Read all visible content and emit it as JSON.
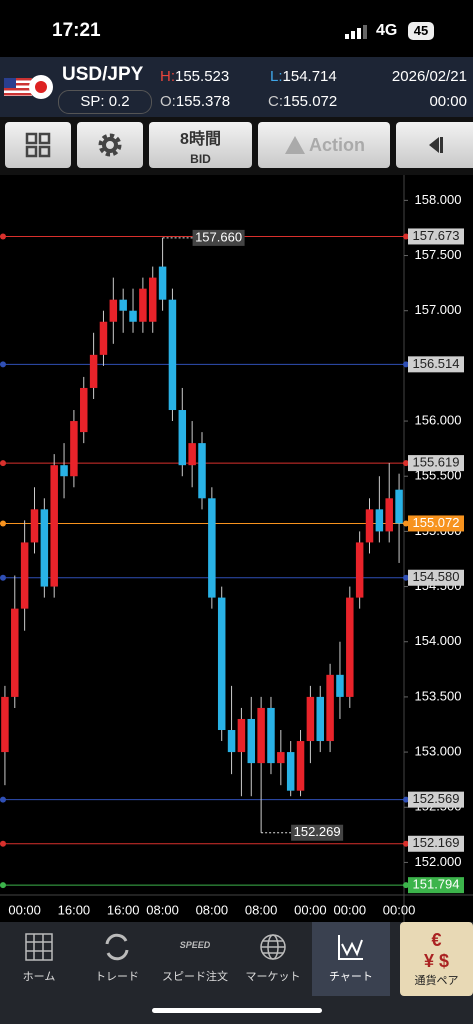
{
  "status": {
    "time": "17:21",
    "network": "4G",
    "battery": "45"
  },
  "header": {
    "pair": "USD/JPY",
    "spread": "SP: 0.2",
    "high_label": "H:",
    "high": "155.523",
    "low_label": "L:",
    "low": "154.714",
    "open_label": "O:",
    "open": "155.378",
    "close_label": "C:",
    "close": "155.072",
    "date": "2026/02/21",
    "time": "00:00"
  },
  "toolbar": {
    "period": "8時間",
    "price_type": "BID",
    "action": "Action"
  },
  "chart_data": {
    "type": "candlestick",
    "up_color": "#e8232a",
    "down_color": "#29b2e6",
    "ylim": [
      151.75,
      158.23
    ],
    "yticks": [
      {
        "value": 152,
        "label": "152.000"
      },
      {
        "value": 152.5,
        "label": "152.500"
      },
      {
        "value": 153,
        "label": "153.000"
      },
      {
        "value": 153.5,
        "label": "153.500"
      },
      {
        "value": 154,
        "label": "154.000"
      },
      {
        "value": 154.5,
        "label": "154.500"
      },
      {
        "value": 155,
        "label": "155.000"
      },
      {
        "value": 155.5,
        "label": "155.500"
      },
      {
        "value": 156,
        "label": "156.000"
      },
      {
        "value": 156.5,
        "label": "156.500"
      },
      {
        "value": 157,
        "label": "157.000"
      },
      {
        "value": 157.5,
        "label": "157.500"
      },
      {
        "value": 158,
        "label": "158.000"
      }
    ],
    "categories": [
      null,
      null,
      "00:00",
      null,
      null,
      null,
      null,
      "16:00",
      null,
      null,
      null,
      null,
      "16:00",
      null,
      null,
      null,
      "08:00",
      null,
      null,
      null,
      null,
      "08:00",
      null,
      null,
      null,
      null,
      "08:00",
      null,
      null,
      null,
      null,
      "00:00",
      null,
      null,
      null,
      "00:00",
      null,
      null,
      null,
      null,
      "00:00"
    ],
    "open": [
      153.0,
      153.5,
      154.3,
      154.9,
      155.2,
      154.5,
      155.6,
      155.5,
      155.9,
      156.3,
      156.6,
      156.9,
      157.1,
      157.0,
      156.9,
      156.9,
      157.4,
      157.1,
      156.1,
      155.6,
      155.8,
      155.3,
      154.4,
      153.2,
      153.0,
      153.3,
      152.9,
      153.4,
      152.9,
      153.0,
      152.65,
      153.1,
      153.5,
      153.1,
      153.7,
      153.5,
      154.4,
      154.9,
      155.2,
      155.0,
      155.378
    ],
    "high": [
      153.6,
      154.6,
      155.1,
      155.4,
      155.3,
      155.7,
      155.8,
      156.1,
      156.4,
      156.8,
      157.0,
      157.3,
      157.2,
      157.2,
      157.3,
      157.4,
      157.66,
      157.2,
      156.3,
      156.0,
      155.9,
      155.4,
      154.5,
      153.6,
      153.4,
      153.5,
      153.5,
      153.5,
      153.2,
      153.1,
      153.2,
      153.6,
      153.6,
      153.8,
      154.0,
      154.5,
      155.0,
      155.3,
      155.5,
      155.62,
      155.523
    ],
    "low": [
      152.7,
      153.4,
      154.1,
      154.8,
      154.4,
      154.4,
      155.3,
      155.4,
      155.8,
      156.2,
      156.5,
      156.7,
      156.8,
      156.8,
      156.8,
      156.8,
      157.0,
      156.0,
      155.5,
      155.4,
      155.2,
      154.3,
      153.1,
      152.8,
      152.6,
      152.6,
      152.269,
      152.8,
      152.7,
      152.6,
      152.6,
      152.9,
      153.0,
      153.0,
      153.3,
      153.4,
      154.3,
      154.8,
      154.9,
      154.9,
      154.714
    ],
    "close": [
      153.5,
      154.3,
      154.9,
      155.2,
      154.5,
      155.6,
      155.5,
      156.0,
      156.3,
      156.6,
      156.9,
      157.1,
      157.0,
      156.9,
      157.2,
      157.3,
      157.1,
      156.1,
      155.6,
      155.8,
      155.3,
      154.4,
      153.2,
      153.0,
      153.3,
      152.9,
      153.4,
      152.9,
      153.0,
      152.65,
      153.1,
      153.5,
      153.1,
      153.7,
      153.5,
      154.4,
      154.9,
      155.2,
      155.0,
      155.3,
      155.072
    ],
    "annotations": [
      {
        "value": 157.66,
        "label": "157.660"
      },
      {
        "value": 152.269,
        "label": "152.269"
      }
    ],
    "levels": [
      {
        "value": 157.673,
        "label": "157.673",
        "color": "#d9302c",
        "box": "#cfcfcf",
        "text_color": "#222"
      },
      {
        "value": 156.514,
        "label": "156.514",
        "color": "#2f4fb5",
        "box": "#cfcfcf",
        "text_color": "#222"
      },
      {
        "value": 155.619,
        "label": "155.619",
        "color": "#d9302c",
        "box": "#cfcfcf",
        "text_color": "#222"
      },
      {
        "value": 155.072,
        "label": "155.072",
        "color": "#f7931e",
        "box": "#f7931e",
        "text_color": "#fff"
      },
      {
        "value": 154.58,
        "label": "154.580",
        "color": "#2f4fb5",
        "box": "#cfcfcf",
        "text_color": "#222"
      },
      {
        "value": 152.569,
        "label": "152.569",
        "color": "#2f4fb5",
        "box": "#cfcfcf",
        "text_color": "#222"
      },
      {
        "value": 152.169,
        "label": "152.169",
        "color": "#d9302c",
        "box": "#cfcfcf",
        "text_color": "#222"
      },
      {
        "value": 151.794,
        "label": "151.794",
        "color": "#3cb44b",
        "box": "#3cb44b",
        "text_color": "#fff"
      }
    ]
  },
  "nav": {
    "items": [
      {
        "label": "ホーム"
      },
      {
        "label": "トレード"
      },
      {
        "label": "スピード注文",
        "icon_text": "SPEED"
      },
      {
        "label": "マーケット"
      },
      {
        "label": "チャート"
      },
      {
        "label": "通貨ペア"
      }
    ]
  }
}
